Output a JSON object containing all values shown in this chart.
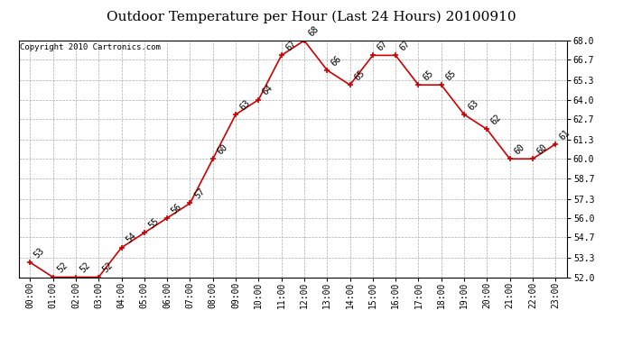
{
  "title": "Outdoor Temperature per Hour (Last 24 Hours) 20100910",
  "copyright": "Copyright 2010 Cartronics.com",
  "hours": [
    "00:00",
    "01:00",
    "02:00",
    "03:00",
    "04:00",
    "05:00",
    "06:00",
    "07:00",
    "08:00",
    "09:00",
    "10:00",
    "11:00",
    "12:00",
    "13:00",
    "14:00",
    "15:00",
    "16:00",
    "17:00",
    "18:00",
    "19:00",
    "20:00",
    "21:00",
    "22:00",
    "23:00"
  ],
  "temps": [
    53,
    52,
    52,
    52,
    54,
    55,
    56,
    57,
    60,
    63,
    64,
    67,
    68,
    66,
    65,
    67,
    67,
    65,
    65,
    63,
    62,
    60,
    60,
    61
  ],
  "ylim_min": 52.0,
  "ylim_max": 68.0,
  "yticks": [
    52.0,
    53.3,
    54.7,
    56.0,
    57.3,
    58.7,
    60.0,
    61.3,
    62.7,
    64.0,
    65.3,
    66.7,
    68.0
  ],
  "line_color": "#cc0000",
  "marker_color": "#cc0000",
  "bg_color": "#ffffff",
  "grid_color": "#aaaaaa",
  "title_fontsize": 11,
  "copyright_fontsize": 6.5,
  "label_fontsize": 7,
  "tick_fontsize": 7
}
